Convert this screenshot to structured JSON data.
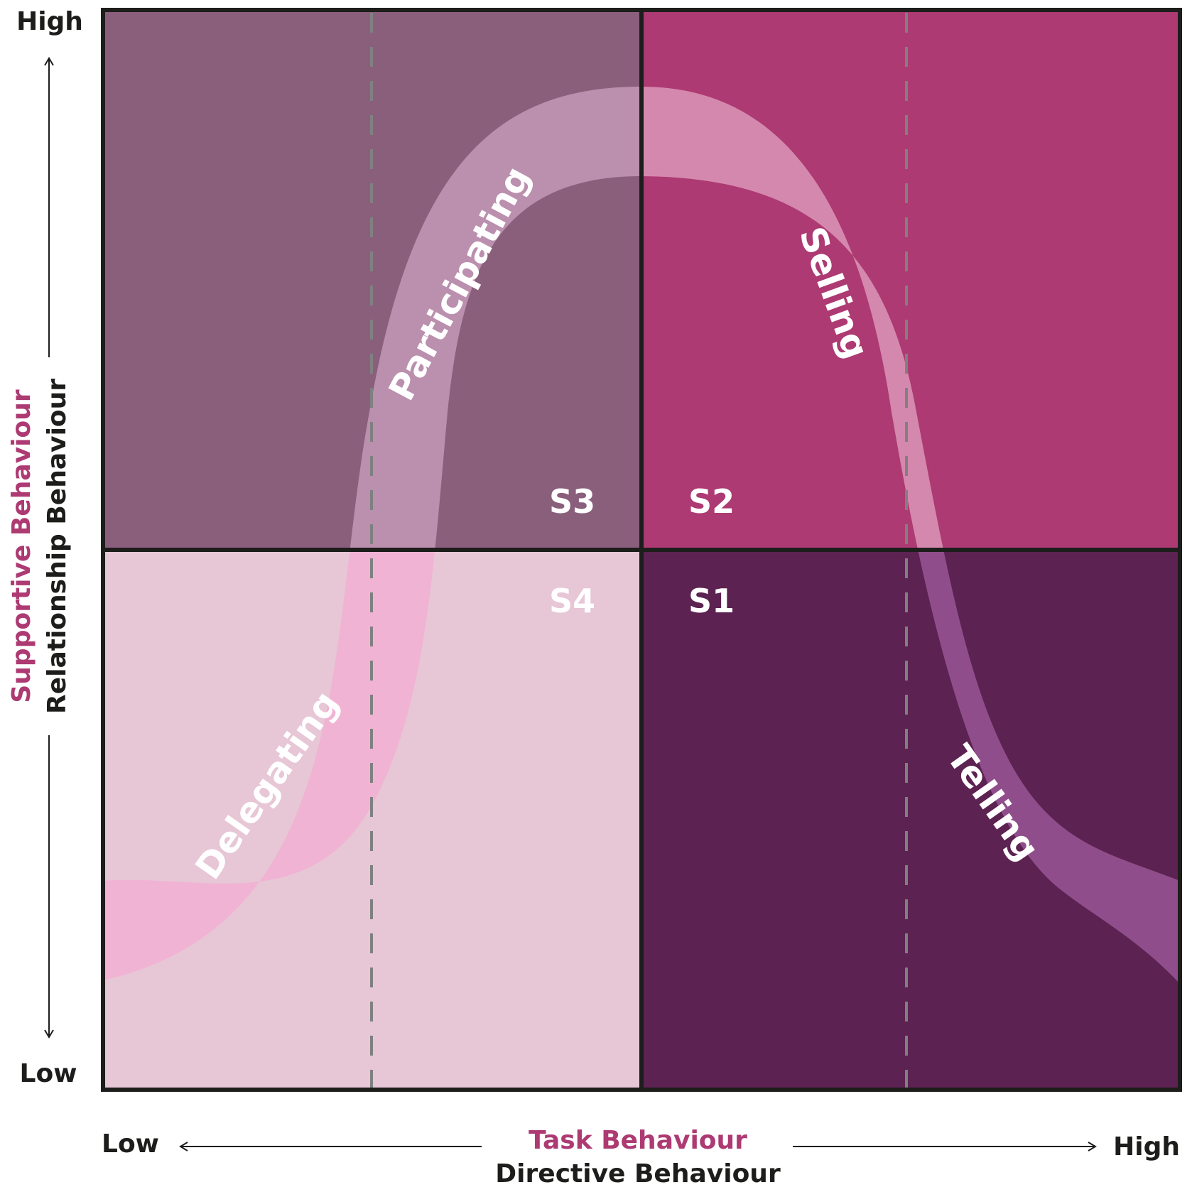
{
  "colors": {
    "s3_quadrant": "#8a5f7c",
    "s2_quadrant": "#ad3a72",
    "s4_quadrant": "#e7c6d6",
    "s1_quadrant": "#5c2251",
    "band_top_left": "#bb8fae",
    "band_top_right": "#d588ae",
    "band_bottom_left": "#f1b3d3",
    "band_bottom_right": "#8f4e8b",
    "accent": "#ad3a72",
    "frame": "#1d1d1b",
    "dash": "#808080"
  },
  "y_axis": {
    "high_label": "High",
    "low_label": "Low",
    "title_accent": "Supportive Behaviour",
    "title_main": "Relationship Behaviour"
  },
  "x_axis": {
    "low_label": "Low",
    "high_label": "High",
    "title_accent": "Task Behaviour",
    "title_main": "Directive Behaviour"
  },
  "quadrants": {
    "s3": "S3",
    "s2": "S2",
    "s4": "S4",
    "s1": "S1"
  },
  "curve_labels": {
    "delegating": "Delegating",
    "participating": "Participating",
    "selling": "Selling",
    "telling": "Telling"
  }
}
